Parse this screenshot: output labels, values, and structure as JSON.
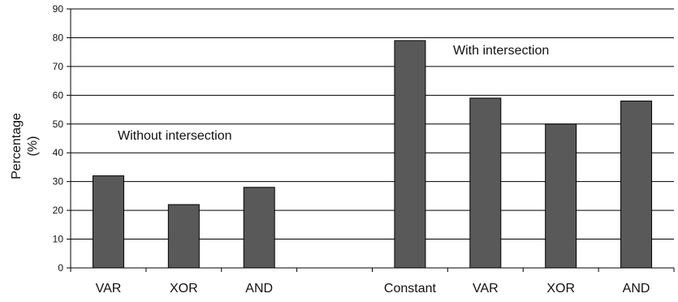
{
  "chart_data": {
    "type": "bar",
    "ylabel_line1": "Percentage",
    "ylabel_line2": "(%)",
    "ylim": [
      0,
      90
    ],
    "yticks": [
      0,
      10,
      20,
      30,
      40,
      50,
      60,
      70,
      80,
      90
    ],
    "grid": true,
    "categories": [
      "VAR",
      "XOR",
      "AND",
      "",
      "Constant",
      "VAR",
      "XOR",
      "AND"
    ],
    "values": [
      32,
      22,
      28,
      null,
      79,
      59,
      50,
      58
    ],
    "annotations": [
      "Without intersection",
      "With intersection"
    ],
    "bar_color": "#595959"
  }
}
